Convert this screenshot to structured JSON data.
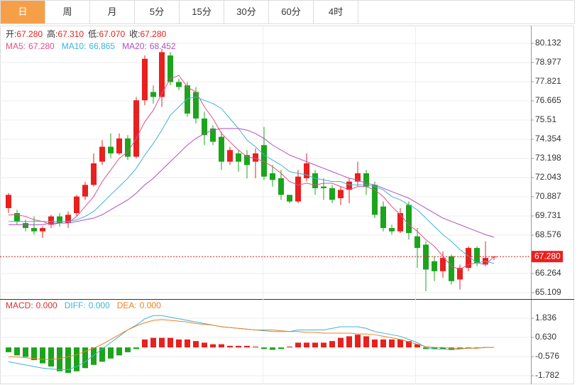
{
  "tabs": [
    "日",
    "周",
    "月",
    "5分",
    "15分",
    "30分",
    "60分",
    "4时"
  ],
  "active_tab": 0,
  "chart_data": [
    {
      "type": "candlestick",
      "up_color": "#e8201e",
      "down_color": "#1ca41c",
      "ohlc_header": [
        {
          "label": "开:",
          "value": "67.280"
        },
        {
          "label": "高:",
          "value": "67.310"
        },
        {
          "label": "低:",
          "value": "67.070"
        },
        {
          "label": "收:",
          "value": "67.280"
        }
      ],
      "categories": [
        null,
        null,
        null,
        null,
        null,
        null,
        null,
        null,
        null,
        null,
        null,
        null,
        null,
        null,
        null,
        null,
        null,
        null,
        null,
        null,
        null,
        null,
        null,
        null,
        null,
        null,
        null,
        null,
        null,
        null,
        null,
        null,
        null,
        null,
        null,
        null,
        null,
        null,
        null,
        null,
        null,
        null,
        null,
        null,
        null,
        null,
        null,
        null,
        null,
        null,
        null,
        null,
        null,
        null,
        null,
        null,
        null,
        null
      ],
      "open": [
        70.2,
        69.9,
        69.3,
        69.0,
        68.8,
        69.2,
        69.7,
        69.3,
        69.9,
        70.9,
        71.6,
        73.0,
        73.9,
        73.5,
        74.4,
        73.3,
        76.7,
        77.2,
        76.9,
        79.4,
        77.8,
        77.6,
        77.2,
        75.6,
        75.0,
        74.5,
        73.0,
        73.5,
        73.4,
        73.0,
        74.0,
        72.3,
        72.0,
        71.0,
        70.6,
        72.0,
        72.3,
        71.5,
        71.4,
        70.8,
        71.3,
        71.8,
        72.3,
        71.6,
        70.3,
        69.0,
        68.8,
        70.4,
        68.5,
        68.0,
        67.0,
        66.4,
        67.3,
        65.9,
        66.6,
        67.8,
        66.8,
        67.28
      ],
      "high": [
        71.1,
        70.1,
        69.5,
        69.7,
        69.1,
        69.8,
        69.9,
        70.0,
        71.0,
        71.8,
        73.5,
        74.3,
        74.7,
        74.7,
        74.6,
        76.9,
        79.4,
        77.6,
        79.8,
        79.6,
        78.0,
        77.8,
        77.5,
        76.0,
        75.2,
        74.8,
        73.9,
        73.7,
        73.7,
        73.8,
        75.1,
        72.8,
        72.5,
        71.0,
        72.5,
        73.5,
        72.5,
        72.0,
        71.6,
        71.5,
        72.0,
        73.0,
        72.5,
        71.8,
        70.6,
        69.2,
        70.2,
        70.6,
        69.0,
        68.2,
        67.3,
        67.6,
        67.4,
        66.8,
        67.9,
        67.9,
        68.2,
        67.31
      ],
      "low": [
        69.9,
        69.2,
        68.8,
        68.6,
        68.4,
        69.0,
        69.1,
        69.0,
        69.7,
        70.7,
        71.5,
        72.8,
        73.2,
        73.4,
        73.1,
        73.2,
        76.4,
        76.5,
        76.3,
        77.6,
        77.3,
        75.7,
        75.3,
        74.0,
        74.0,
        72.5,
        72.8,
        72.4,
        72.0,
        72.0,
        71.9,
        71.5,
        70.7,
        70.5,
        70.5,
        71.8,
        71.0,
        70.7,
        70.5,
        70.4,
        70.5,
        71.5,
        71.0,
        69.6,
        68.8,
        68.6,
        68.7,
        68.3,
        66.6,
        65.2,
        65.8,
        66.0,
        65.6,
        65.3,
        66.4,
        66.7,
        66.7,
        67.07
      ],
      "close": [
        71.0,
        69.4,
        69.0,
        68.8,
        69.0,
        69.7,
        69.3,
        69.8,
        70.9,
        71.6,
        72.9,
        73.9,
        73.5,
        74.4,
        73.3,
        76.7,
        79.2,
        76.9,
        79.6,
        77.8,
        77.5,
        75.9,
        75.6,
        74.6,
        74.2,
        73.0,
        73.7,
        73.0,
        72.8,
        73.5,
        72.1,
        71.9,
        71.0,
        70.6,
        72.1,
        72.9,
        71.4,
        71.4,
        70.7,
        71.3,
        71.8,
        72.3,
        71.5,
        69.8,
        69.0,
        68.8,
        69.9,
        68.7,
        67.8,
        66.5,
        66.4,
        67.2,
        65.8,
        66.6,
        67.8,
        66.9,
        67.2,
        67.28
      ],
      "series": [
        {
          "name": "MA5:",
          "value_label": "67.280",
          "color": "#e0508a",
          "values": [
            69.8,
            69.8,
            69.7,
            69.5,
            69.4,
            69.2,
            69.3,
            69.3,
            69.7,
            70.3,
            70.9,
            71.8,
            72.5,
            73.2,
            73.6,
            74.4,
            75.4,
            76.1,
            77.1,
            78.0,
            78.2,
            77.5,
            77.2,
            76.3,
            75.6,
            74.7,
            74.2,
            73.7,
            73.3,
            73.2,
            73.0,
            72.7,
            72.3,
            71.8,
            71.6,
            71.7,
            71.6,
            71.7,
            71.7,
            71.5,
            71.3,
            71.5,
            71.5,
            71.3,
            70.9,
            70.3,
            69.8,
            69.2,
            68.8,
            68.3,
            67.9,
            67.3,
            66.7,
            66.5,
            66.8,
            66.9,
            66.8,
            67.28
          ]
        },
        {
          "name": "MA10:",
          "value_label": "66.865",
          "color": "#3cb4d8",
          "values": [
            69.4,
            69.4,
            69.4,
            69.4,
            69.4,
            69.4,
            69.4,
            69.4,
            69.5,
            69.7,
            70.0,
            70.5,
            71.0,
            71.5,
            72.0,
            72.6,
            73.4,
            74.1,
            74.9,
            75.8,
            76.3,
            76.8,
            76.9,
            76.7,
            76.5,
            76.2,
            75.6,
            75.0,
            74.3,
            73.9,
            73.4,
            73.1,
            72.8,
            72.4,
            72.3,
            72.2,
            72.0,
            71.9,
            71.8,
            71.8,
            71.6,
            71.6,
            71.6,
            71.5,
            71.3,
            70.9,
            70.7,
            70.4,
            70.1,
            69.6,
            69.1,
            68.6,
            68.2,
            67.7,
            67.3,
            66.9,
            67.0,
            66.865
          ]
        },
        {
          "name": "MA20:",
          "value_label": "68.452",
          "color": "#b04ec4",
          "values": [
            69.2,
            69.2,
            69.2,
            69.2,
            69.2,
            69.3,
            69.3,
            69.3,
            69.4,
            69.5,
            69.6,
            69.8,
            70.1,
            70.4,
            70.7,
            71.1,
            71.6,
            72.0,
            72.5,
            73.0,
            73.5,
            74.0,
            74.4,
            74.7,
            74.9,
            75.0,
            75.0,
            75.0,
            74.9,
            74.7,
            74.4,
            74.0,
            73.7,
            73.4,
            73.2,
            73.0,
            72.8,
            72.6,
            72.4,
            72.2,
            72.0,
            71.9,
            71.7,
            71.6,
            71.4,
            71.2,
            71.0,
            70.8,
            70.5,
            70.2,
            69.9,
            69.6,
            69.4,
            69.2,
            69.0,
            68.8,
            68.6,
            68.452
          ]
        }
      ],
      "ylim": [
        64.764,
        81.031
      ],
      "yticks": [
        80.132,
        78.977,
        77.821,
        76.665,
        75.51,
        74.354,
        73.198,
        72.043,
        70.887,
        69.731,
        68.576,
        66.264,
        65.109
      ],
      "last_price": {
        "value": 67.28,
        "label": "67.280"
      },
      "grid": true
    },
    {
      "type": "macd",
      "up_color": "#e8201e",
      "down_color": "#1ca41c",
      "series": [
        {
          "name": "MACD:",
          "value_label": "0.000",
          "color": "#e03030",
          "kind": "histogram",
          "values": [
            -0.3,
            -0.5,
            -0.6,
            -0.8,
            -1.0,
            -1.2,
            -1.5,
            -1.6,
            -1.5,
            -1.3,
            -1.1,
            -0.9,
            -0.7,
            -0.5,
            -0.3,
            -0.1,
            0.5,
            0.6,
            0.6,
            0.6,
            0.5,
            0.5,
            0.4,
            0.3,
            0.2,
            0.2,
            0.1,
            0.1,
            0.1,
            0.05,
            -0.1,
            -0.15,
            -0.1,
            0.05,
            0.3,
            0.3,
            0.3,
            0.3,
            0.4,
            0.6,
            0.7,
            0.8,
            0.7,
            0.5,
            0.5,
            0.5,
            0.5,
            0.4,
            0.2,
            -0.1,
            -0.1,
            -0.1,
            -0.15,
            -0.1,
            -0.05,
            -0.05,
            0.02,
            0.0
          ]
        },
        {
          "name": "DIFF:",
          "value_label": "0.000",
          "color": "#3cb4d8",
          "kind": "line",
          "values": [
            -0.9,
            -1.0,
            -1.1,
            -1.2,
            -1.3,
            -1.35,
            -1.4,
            -1.4,
            -1.2,
            -0.9,
            -0.5,
            -0.1,
            0.3,
            0.7,
            1.1,
            1.4,
            1.8,
            2.0,
            2.0,
            1.9,
            1.8,
            1.7,
            1.6,
            1.5,
            1.4,
            1.3,
            1.25,
            1.2,
            1.15,
            1.1,
            1.05,
            1.0,
            1.0,
            1.0,
            1.1,
            1.1,
            1.1,
            1.1,
            1.2,
            1.3,
            1.3,
            1.3,
            1.2,
            1.0,
            0.9,
            0.8,
            0.7,
            0.5,
            0.3,
            0.0,
            -0.1,
            -0.1,
            -0.15,
            -0.1,
            -0.05,
            -0.05,
            0.0,
            0.0
          ]
        },
        {
          "name": "DEA:",
          "value_label": "0.000",
          "color": "#f08020",
          "kind": "line",
          "values": [
            -0.6,
            -0.6,
            -0.65,
            -0.7,
            -0.75,
            -0.75,
            -0.7,
            -0.6,
            -0.45,
            -0.25,
            -0.05,
            0.2,
            0.5,
            0.8,
            1.1,
            1.35,
            1.55,
            1.7,
            1.75,
            1.7,
            1.65,
            1.6,
            1.5,
            1.45,
            1.4,
            1.3,
            1.25,
            1.2,
            1.15,
            1.1,
            1.1,
            1.1,
            1.05,
            1.0,
            1.0,
            0.95,
            0.95,
            0.9,
            0.9,
            0.9,
            0.9,
            0.85,
            0.85,
            0.8,
            0.7,
            0.6,
            0.5,
            0.35,
            0.2,
            0.05,
            0.0,
            0.0,
            -0.05,
            -0.05,
            -0.05,
            -0.05,
            0.0,
            0.0
          ]
        }
      ],
      "ylim": [
        -2.273,
        2.907
      ],
      "yticks": [
        1.836,
        {
          "value": 0.63,
          "label": "0.630"
        },
        -0.576,
        -1.782
      ],
      "grid": true
    }
  ]
}
